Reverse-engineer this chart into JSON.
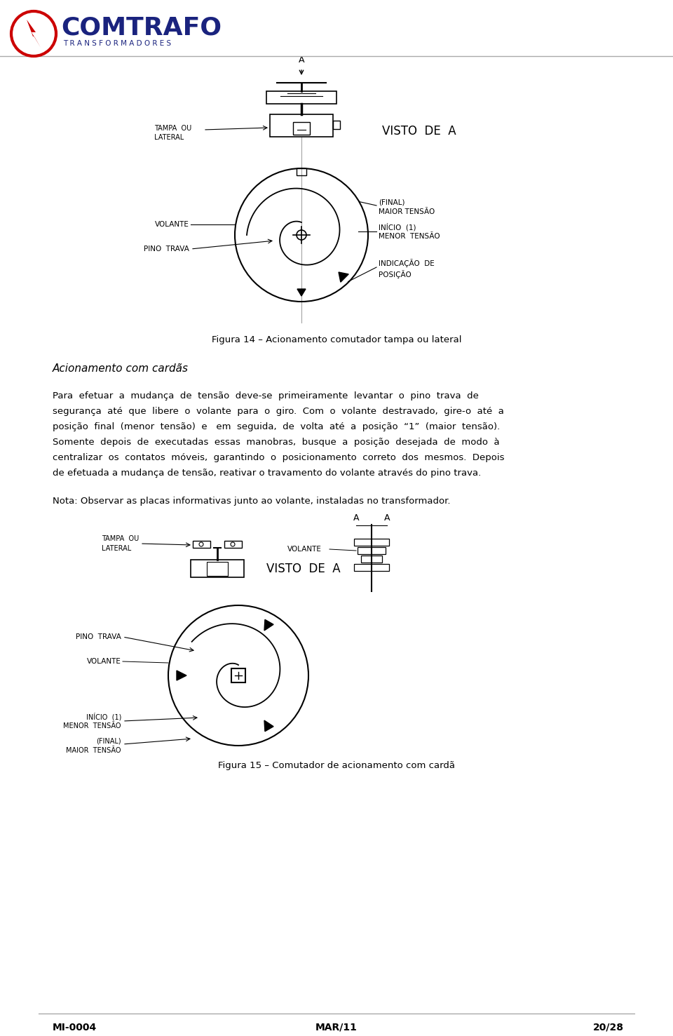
{
  "bg_color": "#ffffff",
  "text_color": "#000000",
  "logo_text_comtrafo": "COMTRAFO",
  "logo_text_transformadores": "TRANSFORMADORES",
  "figure14_caption": "Figura 14 – Acionamento comutador tampa ou lateral",
  "section_title": "Acionamento com cardãs",
  "para_lines": [
    "Para  efetuar  a  mudança  de  tensão  deve-se  primeiramente  levantar  o  pino  trava  de",
    "segurança  até  que  libere  o  volante  para  o  giro.  Com  o  volante  destravado,  gire-o  até  a",
    "posição  final  (menor  tensão)  e   em  seguida,  de  volta  até  a  posição  “1”  (maior  tensão).",
    "Somente  depois  de  executadas  essas  manobras,  busque  a  posição  desejada  de  modo  à",
    "centralizar  os  contatos  móveis,  garantindo  o  posicionamento  correto  dos  mesmos.  Depois",
    "de efetuada a mudança de tensão, reativar o travamento do volante através do pino trava."
  ],
  "note": "Nota: Observar as placas informativas junto ao volante, instaladas no transformador.",
  "figure15_caption": "Figura 15 – Comutador de acionamento com cardã",
  "footer_left": "MI-0004",
  "footer_center": "MAR/11",
  "footer_right": "20/28"
}
